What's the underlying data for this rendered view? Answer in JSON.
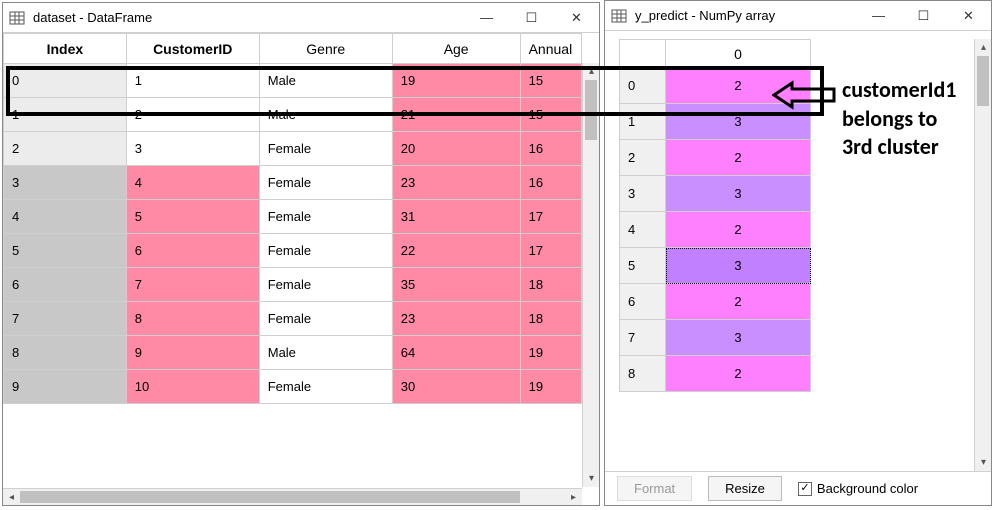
{
  "windows": {
    "dataset": {
      "title": "dataset - DataFrame",
      "columns": [
        "Index",
        "CustomerID",
        "Genre",
        "Age",
        "Annual"
      ],
      "column_bold": [
        true,
        true,
        false,
        false,
        false
      ],
      "rows": [
        {
          "index": "0",
          "CustomerID": "1",
          "Genre": "Male",
          "Age": "19",
          "Annual": "15"
        },
        {
          "index": "1",
          "CustomerID": "2",
          "Genre": "Male",
          "Age": "21",
          "Annual": "15"
        },
        {
          "index": "2",
          "CustomerID": "3",
          "Genre": "Female",
          "Age": "20",
          "Annual": "16"
        },
        {
          "index": "3",
          "CustomerID": "4",
          "Genre": "Female",
          "Age": "23",
          "Annual": "16"
        },
        {
          "index": "4",
          "CustomerID": "5",
          "Genre": "Female",
          "Age": "31",
          "Annual": "17"
        },
        {
          "index": "5",
          "CustomerID": "6",
          "Genre": "Female",
          "Age": "22",
          "Annual": "17"
        },
        {
          "index": "6",
          "CustomerID": "7",
          "Genre": "Female",
          "Age": "35",
          "Annual": "18"
        },
        {
          "index": "7",
          "CustomerID": "8",
          "Genre": "Female",
          "Age": "23",
          "Annual": "18"
        },
        {
          "index": "8",
          "CustomerID": "9",
          "Genre": "Male",
          "Age": "64",
          "Annual": "19"
        },
        {
          "index": "9",
          "CustomerID": "10",
          "Genre": "Female",
          "Age": "30",
          "Annual": "19"
        }
      ],
      "colors": {
        "index_bg": "#e3e3e3",
        "pink": "#ff8aa6",
        "grid_border": "#cfcfcf"
      }
    },
    "ypredict": {
      "title": "y_predict - NumPy array",
      "header": "0",
      "rows": [
        {
          "index": "0",
          "val": "2",
          "color": "violet"
        },
        {
          "index": "1",
          "val": "3",
          "color": "purple"
        },
        {
          "index": "2",
          "val": "2",
          "color": "violet"
        },
        {
          "index": "3",
          "val": "3",
          "color": "purple"
        },
        {
          "index": "4",
          "val": "2",
          "color": "violet"
        },
        {
          "index": "5",
          "val": "3",
          "color": "purple2",
          "selected": true
        },
        {
          "index": "6",
          "val": "2",
          "color": "violet"
        },
        {
          "index": "7",
          "val": "3",
          "color": "purple"
        },
        {
          "index": "8",
          "val": "2",
          "color": "violet"
        }
      ],
      "footer": {
        "format_label": "Format",
        "resize_label": "Resize",
        "bgcolor_label": "Background color",
        "bgcolor_checked": true
      },
      "colors": {
        "violet": "#ff80ff",
        "purple": "#c98fff",
        "purple2": "#c080ff"
      }
    }
  },
  "annotation": {
    "line1": "customerId1",
    "line2": "belongs to",
    "line3": "3rd cluster"
  }
}
